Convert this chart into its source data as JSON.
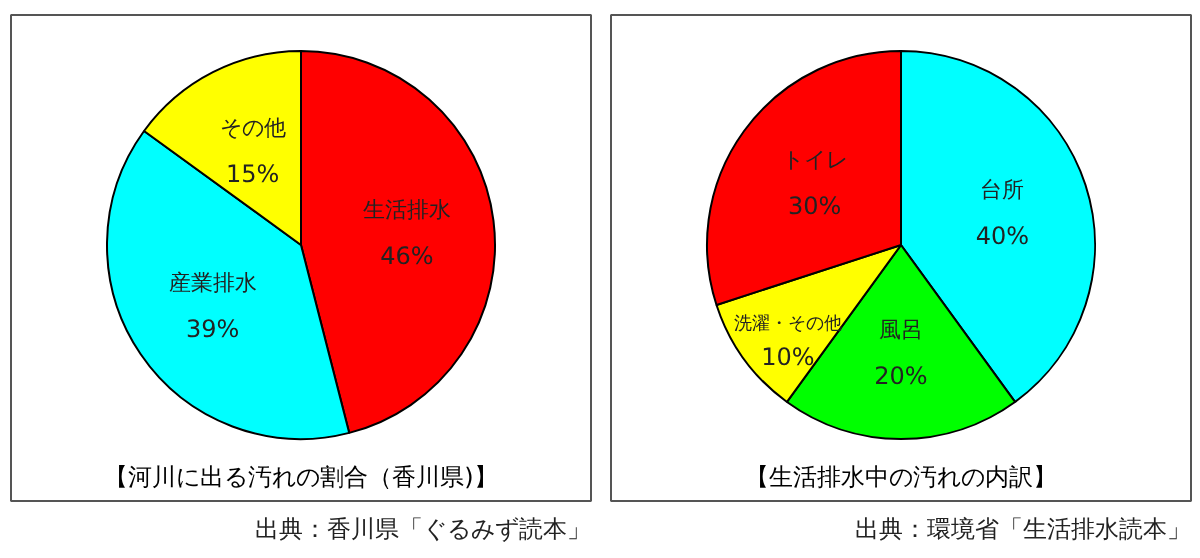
{
  "chart_data": [
    {
      "type": "pie",
      "title": "【河川に出る汚れの割合（香川県)】",
      "categories": [
        "生活排水",
        "産業排水",
        "その他"
      ],
      "values": [
        46,
        39,
        15
      ],
      "colors": [
        "#ff0000",
        "#00ffff",
        "#ffff00"
      ],
      "value_labels": [
        "46%",
        "39%",
        "15%"
      ],
      "annotations": [
        "出典：香川県「ぐるみず読本」"
      ],
      "legend": false
    },
    {
      "type": "pie",
      "title": "【生活排水中の汚れの内訳】",
      "categories": [
        "台所",
        "風呂",
        "洗濯・その他",
        "トイレ"
      ],
      "values": [
        40,
        20,
        10,
        30
      ],
      "colors": [
        "#00ffff",
        "#00ff00",
        "#ffff00",
        "#ff0000"
      ],
      "value_labels": [
        "40%",
        "20%",
        "10%",
        "30%"
      ],
      "annotations": [
        "出典：環境省「生活排水読本」"
      ],
      "legend": false
    }
  ]
}
